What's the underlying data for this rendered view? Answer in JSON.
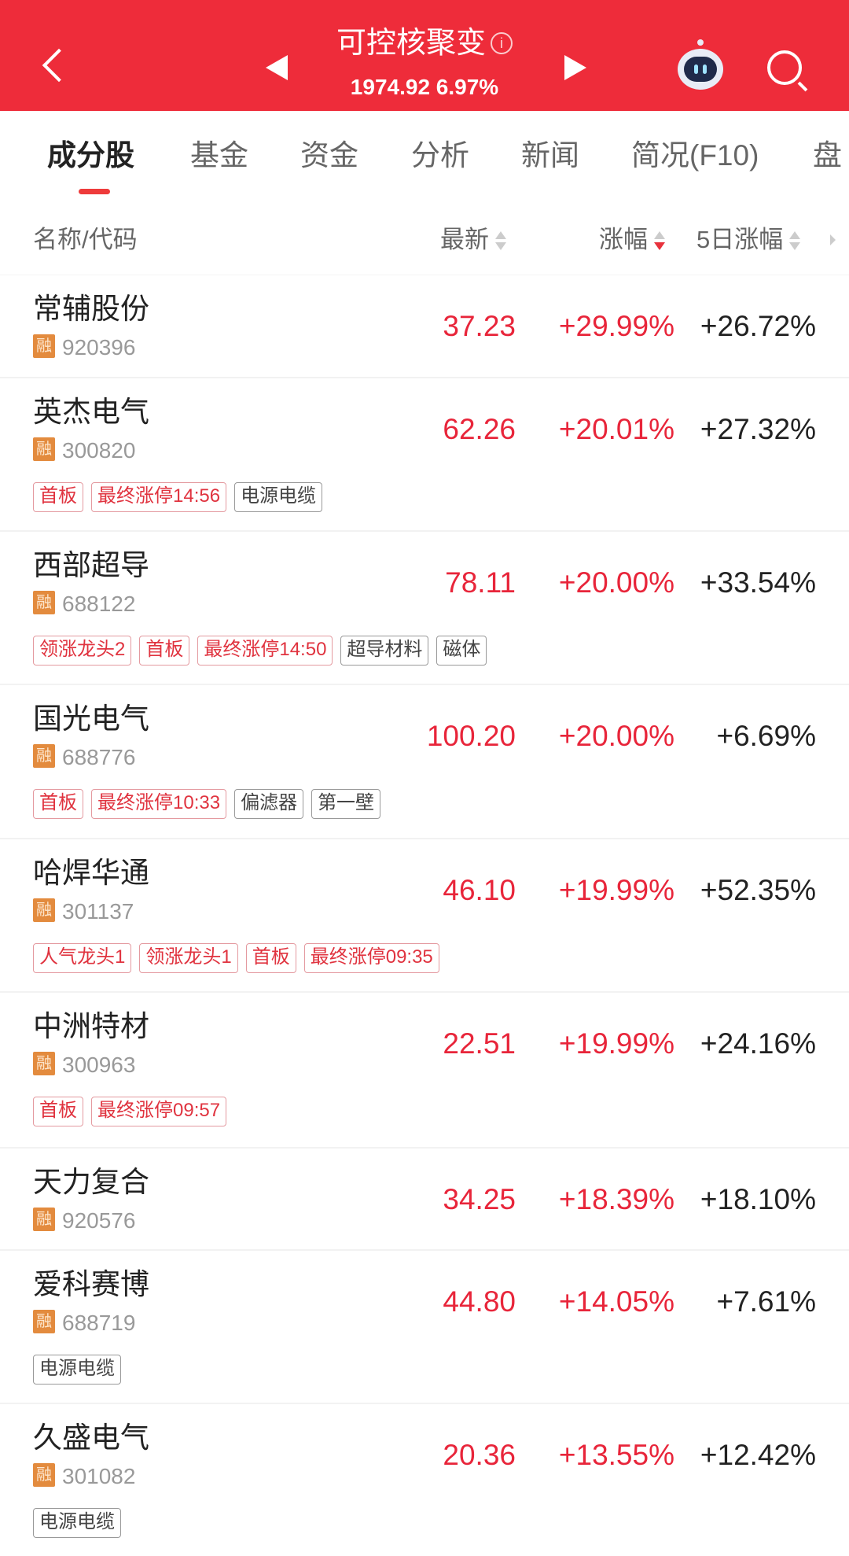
{
  "header": {
    "title": "可控核聚变",
    "info_icon": "i",
    "index_value": "1974.92",
    "index_change": "6.97%",
    "bg_color": "#ee2c3a"
  },
  "tabs": [
    {
      "label": "成分股",
      "active": true
    },
    {
      "label": "基金"
    },
    {
      "label": "资金"
    },
    {
      "label": "分析"
    },
    {
      "label": "新闻"
    },
    {
      "label": "简况(F10)"
    },
    {
      "label": "盘"
    }
  ],
  "columns": {
    "name": "名称/代码",
    "price": "最新",
    "change": "涨幅",
    "change5d": "5日涨幅"
  },
  "rong_label": "融",
  "rows": [
    {
      "name": "常辅股份",
      "code": "920396",
      "price": "37.23",
      "change": "+29.99%",
      "change5d": "+26.72%",
      "tags": []
    },
    {
      "name": "英杰电气",
      "code": "300820",
      "price": "62.26",
      "change": "+20.01%",
      "change5d": "+27.32%",
      "tags": [
        {
          "t": "首板",
          "red": true
        },
        {
          "t": "最终涨停14:56",
          "red": true
        },
        {
          "t": "电源电缆",
          "red": false
        }
      ]
    },
    {
      "name": "西部超导",
      "code": "688122",
      "price": "78.11",
      "change": "+20.00%",
      "change5d": "+33.54%",
      "tags": [
        {
          "t": "领涨龙头2",
          "red": true
        },
        {
          "t": "首板",
          "red": true
        },
        {
          "t": "最终涨停14:50",
          "red": true
        },
        {
          "t": "超导材料",
          "red": false
        },
        {
          "t": "磁体",
          "red": false
        }
      ]
    },
    {
      "name": "国光电气",
      "code": "688776",
      "price": "100.20",
      "change": "+20.00%",
      "change5d": "+6.69%",
      "tags": [
        {
          "t": "首板",
          "red": true
        },
        {
          "t": "最终涨停10:33",
          "red": true
        },
        {
          "t": "偏滤器",
          "red": false
        },
        {
          "t": "第一壁",
          "red": false
        }
      ]
    },
    {
      "name": "哈焊华通",
      "code": "301137",
      "price": "46.10",
      "change": "+19.99%",
      "change5d": "+52.35%",
      "tags": [
        {
          "t": "人气龙头1",
          "red": true
        },
        {
          "t": "领涨龙头1",
          "red": true
        },
        {
          "t": "首板",
          "red": true
        },
        {
          "t": "最终涨停09:35",
          "red": true
        }
      ]
    },
    {
      "name": "中洲特材",
      "code": "300963",
      "price": "22.51",
      "change": "+19.99%",
      "change5d": "+24.16%",
      "tags": [
        {
          "t": "首板",
          "red": true
        },
        {
          "t": "最终涨停09:57",
          "red": true
        }
      ]
    },
    {
      "name": "天力复合",
      "code": "920576",
      "price": "34.25",
      "change": "+18.39%",
      "change5d": "+18.10%",
      "tags": []
    },
    {
      "name": "爱科赛博",
      "code": "688719",
      "price": "44.80",
      "change": "+14.05%",
      "change5d": "+7.61%",
      "tags": [
        {
          "t": "电源电缆",
          "red": false
        }
      ]
    },
    {
      "name": "久盛电气",
      "code": "301082",
      "price": "20.36",
      "change": "+13.55%",
      "change5d": "+12.42%",
      "tags": [
        {
          "t": "电源电缆",
          "red": false
        }
      ]
    }
  ]
}
